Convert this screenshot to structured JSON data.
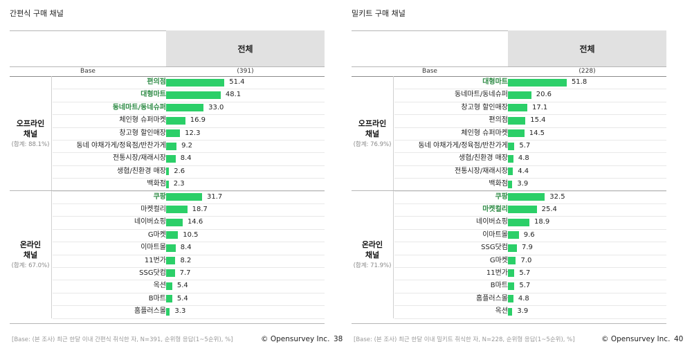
{
  "colors": {
    "bar": "#2bcf68",
    "highlight_text": "#2e8b45",
    "header_bg": "#e1e1e1"
  },
  "chart_data": [
    {
      "type": "bar",
      "title": "간편식 구매 채널",
      "column_header": "전체",
      "base_label": "Base",
      "base_value": "(391)",
      "groups": [
        {
          "name": "오프라인 채널",
          "name_lines": [
            "오프라인",
            "채널"
          ],
          "sum_label": "(합계: 88.1%)",
          "categories": [
            "편의점",
            "대형마트",
            "동네마트/동네슈퍼",
            "체인형 슈퍼마켓",
            "창고형 할인매장",
            "동네 야채가게/정육점/반찬가게",
            "전통시장/재래시장",
            "생협/친환경 매장",
            "백화점"
          ],
          "values": [
            51.4,
            48.1,
            33.0,
            16.9,
            12.3,
            9.2,
            8.4,
            2.6,
            2.3
          ],
          "value_labels": [
            "51.4",
            "48.1",
            "33.0",
            "16.9",
            "12.3",
            "9.2",
            "8.4",
            "2.6",
            "2.3"
          ],
          "highlight": [
            true,
            true,
            true,
            false,
            false,
            false,
            false,
            false,
            false
          ]
        },
        {
          "name": "온라인 채널",
          "name_lines": [
            "온라인",
            "채널"
          ],
          "sum_label": "(합계: 67.0%)",
          "categories": [
            "쿠팡",
            "마켓컬리",
            "네이버쇼핑",
            "G마켓",
            "이마트몰",
            "11번가",
            "SSG닷컴",
            "옥션",
            "B마트",
            "홈플러스몰"
          ],
          "values": [
            31.7,
            18.7,
            14.6,
            10.5,
            8.4,
            8.2,
            7.7,
            5.4,
            5.4,
            3.3
          ],
          "value_labels": [
            "31.7",
            "18.7",
            "14.6",
            "10.5",
            "8.4",
            "8.2",
            "7.7",
            "5.4",
            "5.4",
            "3.3"
          ],
          "highlight": [
            true,
            false,
            false,
            false,
            false,
            false,
            false,
            false,
            false,
            false
          ]
        }
      ],
      "footnote": "[Base: (본 조사) 최근 한달 이내 간편식 취식한 자, N=391, 순위형 응답(1~5순위), %]",
      "brand": "© Opensurvey Inc.",
      "page_number": "38"
    },
    {
      "type": "bar",
      "title": "밀키트 구매 채널",
      "column_header": "전체",
      "base_label": "Base",
      "base_value": "(228)",
      "groups": [
        {
          "name": "오프라인 채널",
          "name_lines": [
            "오프라인",
            "채널"
          ],
          "sum_label": "(합계: 76.9%)",
          "categories": [
            "대형마트",
            "동네마트/동네슈퍼",
            "창고형 할인매장",
            "편의점",
            "체인형 슈퍼마켓",
            "동네 야채가게/정육점/반찬가게",
            "생협/친환경 매장",
            "전통시장/재래시장",
            "백화점"
          ],
          "values": [
            51.8,
            20.6,
            17.1,
            15.4,
            14.5,
            5.7,
            4.8,
            4.4,
            3.9
          ],
          "value_labels": [
            "51.8",
            "20.6",
            "17.1",
            "15.4",
            "14.5",
            "5.7",
            "4.8",
            "4.4",
            "3.9"
          ],
          "highlight": [
            true,
            false,
            false,
            false,
            false,
            false,
            false,
            false,
            false
          ]
        },
        {
          "name": "온라인 채널",
          "name_lines": [
            "온라인",
            "채널"
          ],
          "sum_label": "(합계: 71.9%)",
          "categories": [
            "쿠팡",
            "마켓컬리",
            "네이버쇼핑",
            "이마트몰",
            "SSG닷컴",
            "G마켓",
            "11번가",
            "B마트",
            "홈플러스몰",
            "옥션"
          ],
          "values": [
            32.5,
            25.4,
            18.9,
            9.6,
            7.9,
            7.0,
            5.7,
            5.7,
            4.8,
            3.9
          ],
          "value_labels": [
            "32.5",
            "25.4",
            "18.9",
            "9.6",
            "7.9",
            "7.0",
            "5.7",
            "5.7",
            "4.8",
            "3.9"
          ],
          "highlight": [
            true,
            true,
            false,
            false,
            false,
            false,
            false,
            false,
            false,
            false
          ]
        }
      ],
      "footnote": "[Base: (본 조사) 최근 한달 이내 밀키트 취식한 자, N=228, 순위형 응답(1~5순위), %]",
      "brand": "© Opensurvey Inc.",
      "page_number": "40"
    }
  ]
}
